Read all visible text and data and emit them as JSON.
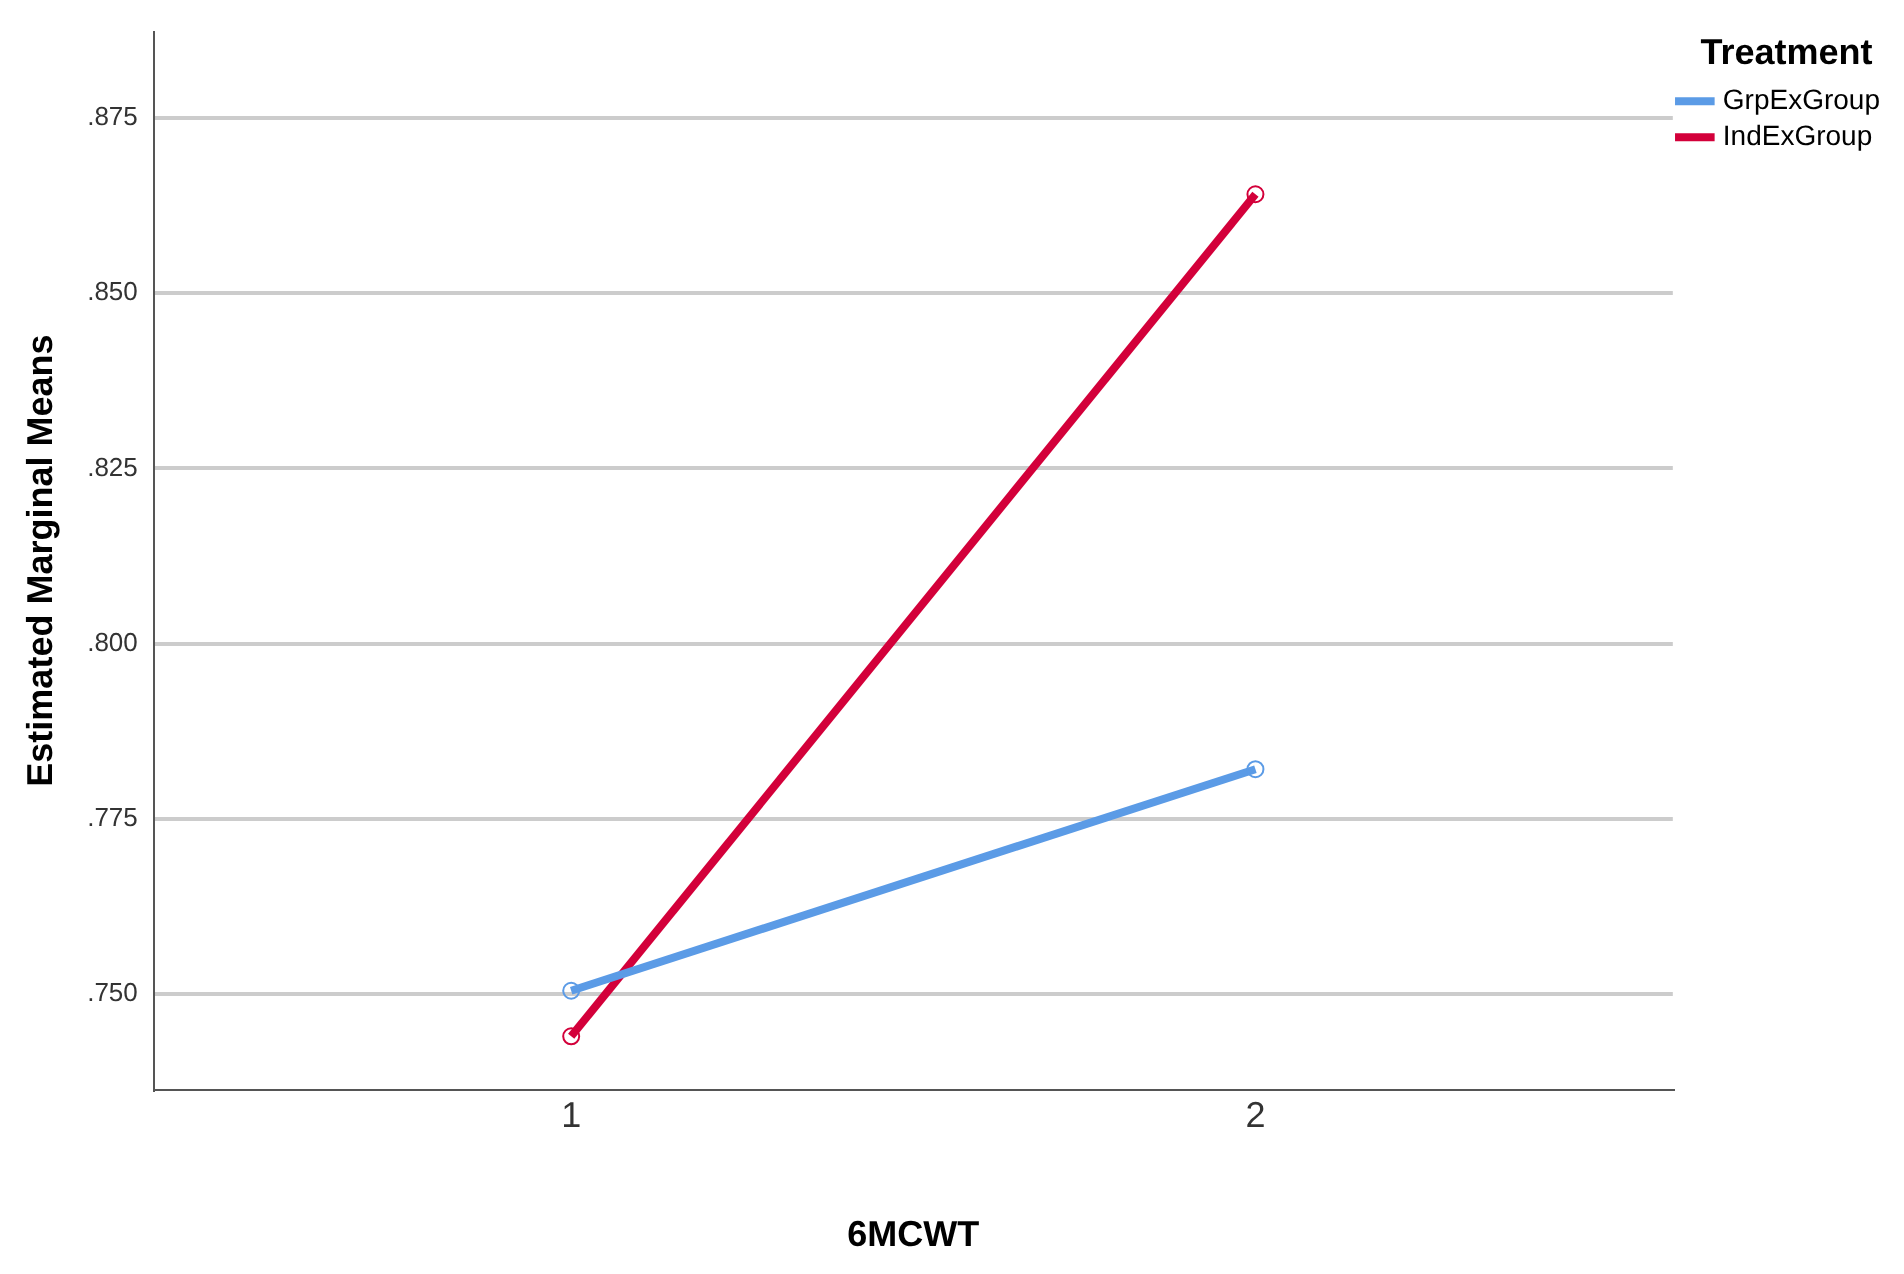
{
  "chart_data": {
    "type": "line",
    "xlabel": "6MCWT",
    "ylabel": "Estimated Marginal Means",
    "legend_title": "Treatment",
    "x": [
      1,
      2
    ],
    "xlim": [
      0.39,
      2.61
    ],
    "xticks": [
      1,
      2
    ],
    "ylim": [
      0.7364,
      0.8873
    ],
    "yticks": [
      {
        "value": 0.75,
        "label": ".750"
      },
      {
        "value": 0.775,
        "label": ".775"
      },
      {
        "value": 0.8,
        "label": ".800"
      },
      {
        "value": 0.825,
        "label": ".825"
      },
      {
        "value": 0.85,
        "label": ".850"
      },
      {
        "value": 0.875,
        "label": ".875"
      }
    ],
    "series": [
      {
        "name": "GrpExGroup",
        "color": "#5b9be6",
        "values": [
          0.7505,
          0.7821
        ]
      },
      {
        "name": "IndExGroup",
        "color": "#d3003a",
        "values": [
          0.744,
          0.8641
        ]
      }
    ],
    "grid": "y",
    "legend": "top right",
    "marker": "circle",
    "line_style": "solid"
  }
}
